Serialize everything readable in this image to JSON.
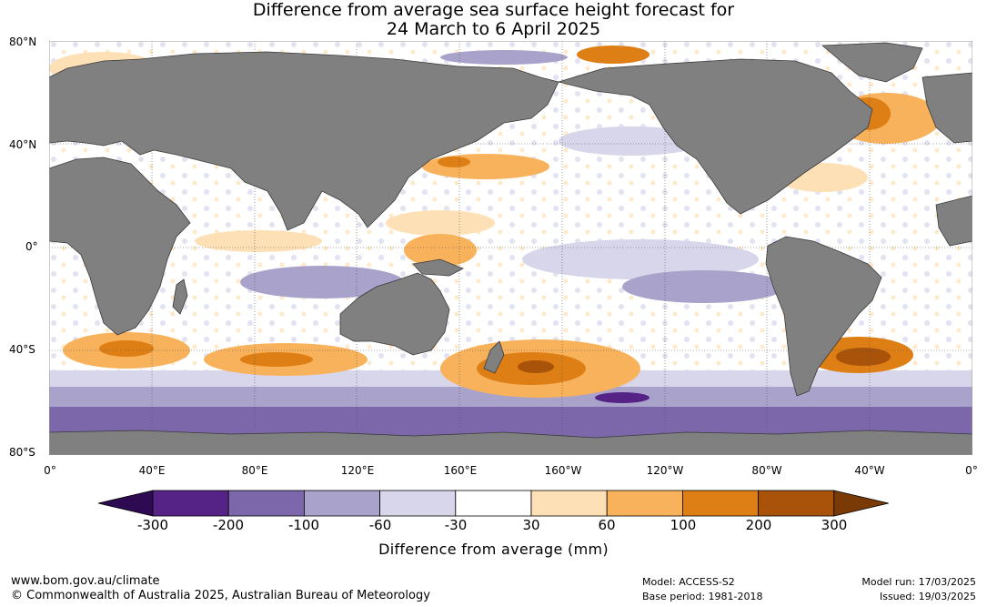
{
  "title": {
    "line1": "Difference from average sea surface height forecast for",
    "line2": "24 March to 6 April 2025"
  },
  "lat_labels": [
    "80°N",
    "40°N",
    "0°",
    "40°S",
    "80°S"
  ],
  "lon_labels": [
    "0°",
    "40°E",
    "80°E",
    "120°E",
    "160°E",
    "160°W",
    "120°W",
    "80°W",
    "40°W",
    "0°"
  ],
  "colorbar": {
    "title": "Difference from average (mm)",
    "ticks": [
      "-300",
      "-200",
      "-100",
      "-60",
      "-30",
      "30",
      "60",
      "100",
      "200",
      "300"
    ],
    "colors": [
      "#2d0a52",
      "#552386",
      "#7b67a9",
      "#a9a2cb",
      "#d7d6ea",
      "#ffffff",
      "#fde0b5",
      "#f8b25b",
      "#de7f15",
      "#a9520a",
      "#7a3a06"
    ]
  },
  "footer": {
    "site": "www.bom.gov.au/climate",
    "copyright": "© Commonwealth of Australia 2025, Australian Bureau of Meteorology",
    "model": "Model: ACCESS-S2",
    "base_period": "Base period: 1981-2018",
    "model_run": "Model run: 17/03/2025",
    "issued": "Issued: 19/03/2025"
  },
  "map_colors": {
    "land": "#808080",
    "land_edge": "#3a3a3a",
    "grid": "#555555"
  }
}
